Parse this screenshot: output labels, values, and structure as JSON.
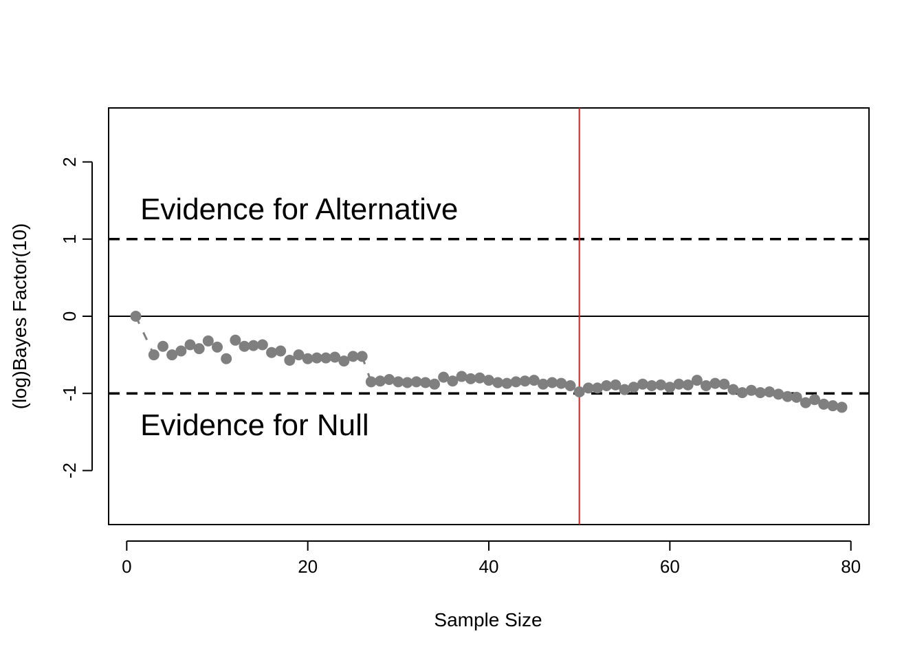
{
  "chart_data": {
    "type": "scatter",
    "xlabel": "Sample Size",
    "ylabel": "(log)Bayes Factor(10)",
    "xlim": [
      -2,
      82
    ],
    "ylim": [
      -2.7,
      2.7
    ],
    "x_ticks": [
      0,
      20,
      40,
      60,
      80
    ],
    "y_ticks": [
      -2,
      -1,
      0,
      1,
      2
    ],
    "grid": false,
    "legend": "none",
    "reference_lines": {
      "horizontal_solid": 0,
      "horizontal_dashed": [
        1,
        -1
      ],
      "vertical": 50
    },
    "annotations": [
      {
        "text": "Evidence for Alternative",
        "x": 1.5,
        "y": 1.4
      },
      {
        "text": "Evidence for Null",
        "x": 1.5,
        "y": -1.4
      }
    ],
    "colors": {
      "points": "#7f7f7f",
      "vertical_line": "#e31a1c",
      "reference": "#000000"
    },
    "series": [
      {
        "x": [
          1,
          3,
          4,
          5,
          6,
          7,
          8,
          9,
          10,
          11,
          12,
          13,
          14,
          15,
          16,
          17,
          18,
          19,
          20,
          21,
          22,
          23,
          24,
          25,
          26,
          27,
          28,
          29,
          30,
          31,
          32,
          33,
          34,
          35,
          36,
          37,
          38,
          39,
          40,
          41,
          42,
          43,
          44,
          45,
          46,
          47,
          48,
          49,
          50,
          51,
          52,
          53,
          54,
          55,
          56,
          57,
          58,
          59,
          60,
          61,
          62,
          63,
          64,
          65,
          66,
          67,
          68,
          69,
          70,
          71,
          72,
          73,
          74,
          75,
          76,
          77,
          78,
          79
        ],
        "y": [
          0.0,
          -0.5,
          -0.39,
          -0.5,
          -0.45,
          -0.37,
          -0.42,
          -0.32,
          -0.4,
          -0.55,
          -0.31,
          -0.39,
          -0.38,
          -0.37,
          -0.47,
          -0.45,
          -0.57,
          -0.5,
          -0.55,
          -0.54,
          -0.54,
          -0.53,
          -0.58,
          -0.52,
          -0.52,
          -0.85,
          -0.84,
          -0.82,
          -0.85,
          -0.86,
          -0.85,
          -0.86,
          -0.88,
          -0.79,
          -0.84,
          -0.78,
          -0.81,
          -0.8,
          -0.83,
          -0.86,
          -0.87,
          -0.85,
          -0.84,
          -0.83,
          -0.88,
          -0.86,
          -0.87,
          -0.9,
          -0.98,
          -0.93,
          -0.93,
          -0.9,
          -0.89,
          -0.95,
          -0.92,
          -0.88,
          -0.9,
          -0.89,
          -0.92,
          -0.88,
          -0.89,
          -0.83,
          -0.9,
          -0.87,
          -0.88,
          -0.95,
          -0.99,
          -0.96,
          -0.99,
          -0.98,
          -1.01,
          -1.04,
          -1.05,
          -1.12,
          -1.08,
          -1.14,
          -1.16,
          -1.18
        ]
      }
    ]
  }
}
